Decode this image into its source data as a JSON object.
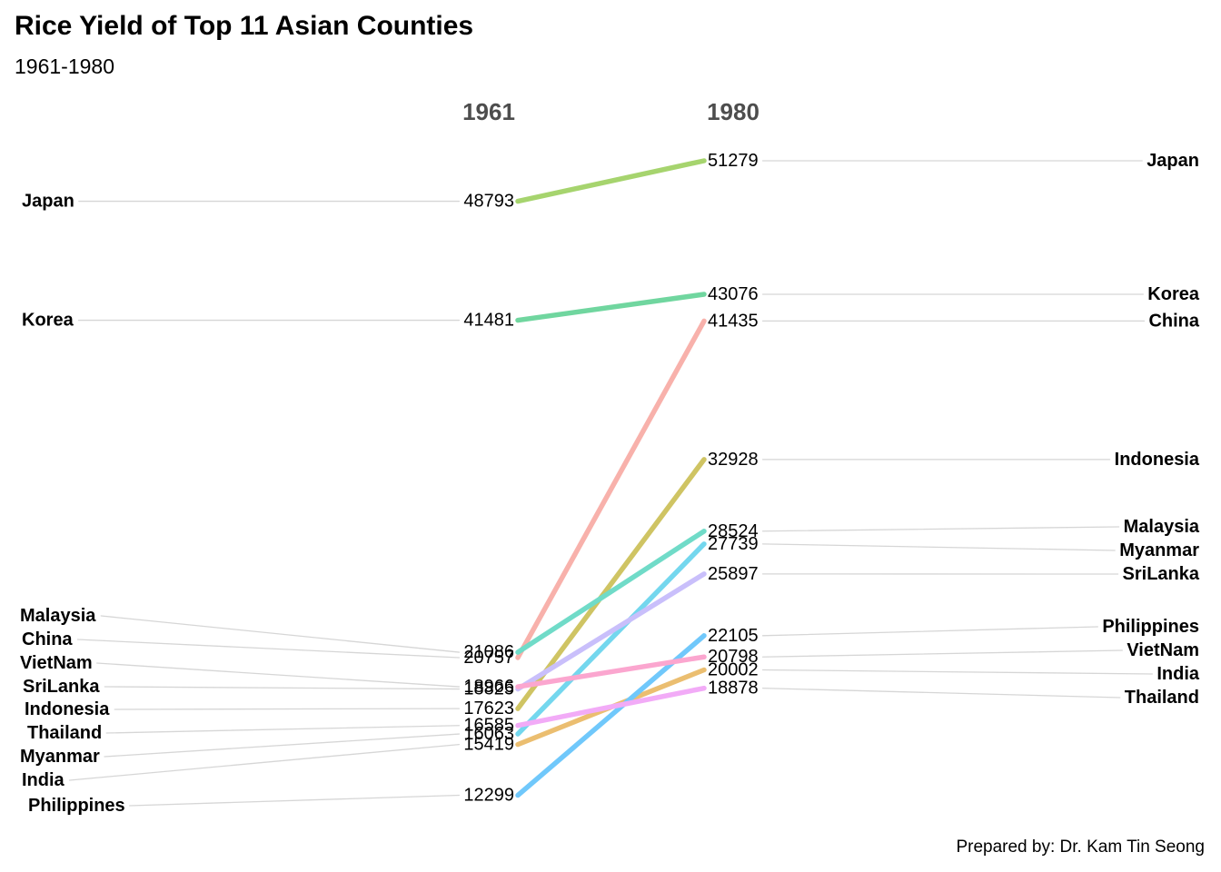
{
  "header": {
    "title": "Rice Yield of Top 11 Asian Counties",
    "subtitle": "1961-1980"
  },
  "footer": {
    "credit": "Prepared by: Dr. Kam Tin Seong"
  },
  "chart_data": {
    "type": "line",
    "variant": "slopegraph",
    "title": "Rice Yield of Top 11 Asian Counties",
    "subtitle": "1961-1980",
    "columns": [
      "1961",
      "1980"
    ],
    "value_axis_range": [
      12299,
      51279
    ],
    "grid": false,
    "legend": "none",
    "series": [
      {
        "name": "China",
        "values": [
          20757,
          41435
        ],
        "color": "#F8B1AB"
      },
      {
        "name": "India",
        "values": [
          15419,
          20002
        ],
        "color": "#EBBE70"
      },
      {
        "name": "Indonesia",
        "values": [
          17623,
          32928
        ],
        "color": "#CFC463"
      },
      {
        "name": "Japan",
        "values": [
          48793,
          51279
        ],
        "color": "#A6D46E"
      },
      {
        "name": "Korea",
        "values": [
          41481,
          43076
        ],
        "color": "#70D69F"
      },
      {
        "name": "Malaysia",
        "values": [
          21086,
          28524
        ],
        "color": "#70DBC8"
      },
      {
        "name": "Myanmar",
        "values": [
          16063,
          27739
        ],
        "color": "#74D7EE"
      },
      {
        "name": "Philippines",
        "values": [
          12299,
          22105
        ],
        "color": "#70C8FB"
      },
      {
        "name": "SriLanka",
        "values": [
          18825,
          25897
        ],
        "color": "#C9BFFB"
      },
      {
        "name": "Thailand",
        "values": [
          16585,
          18878
        ],
        "color": "#F2ABF7"
      },
      {
        "name": "VietNam",
        "values": [
          18966,
          20798
        ],
        "color": "#FBA6CF"
      }
    ],
    "left_labels_top_to_bottom": [
      "Japan",
      "Korea",
      "Malaysia",
      "China",
      "VietNam",
      "SriLanka",
      "Indonesia",
      "Thailand",
      "Myanmar",
      "India",
      "Philippines"
    ],
    "right_labels_top_to_bottom": [
      "Japan",
      "Korea",
      "China",
      "Indonesia",
      "Malaysia",
      "Myanmar",
      "SriLanka",
      "Philippines",
      "VietNam",
      "India",
      "Thailand"
    ]
  }
}
